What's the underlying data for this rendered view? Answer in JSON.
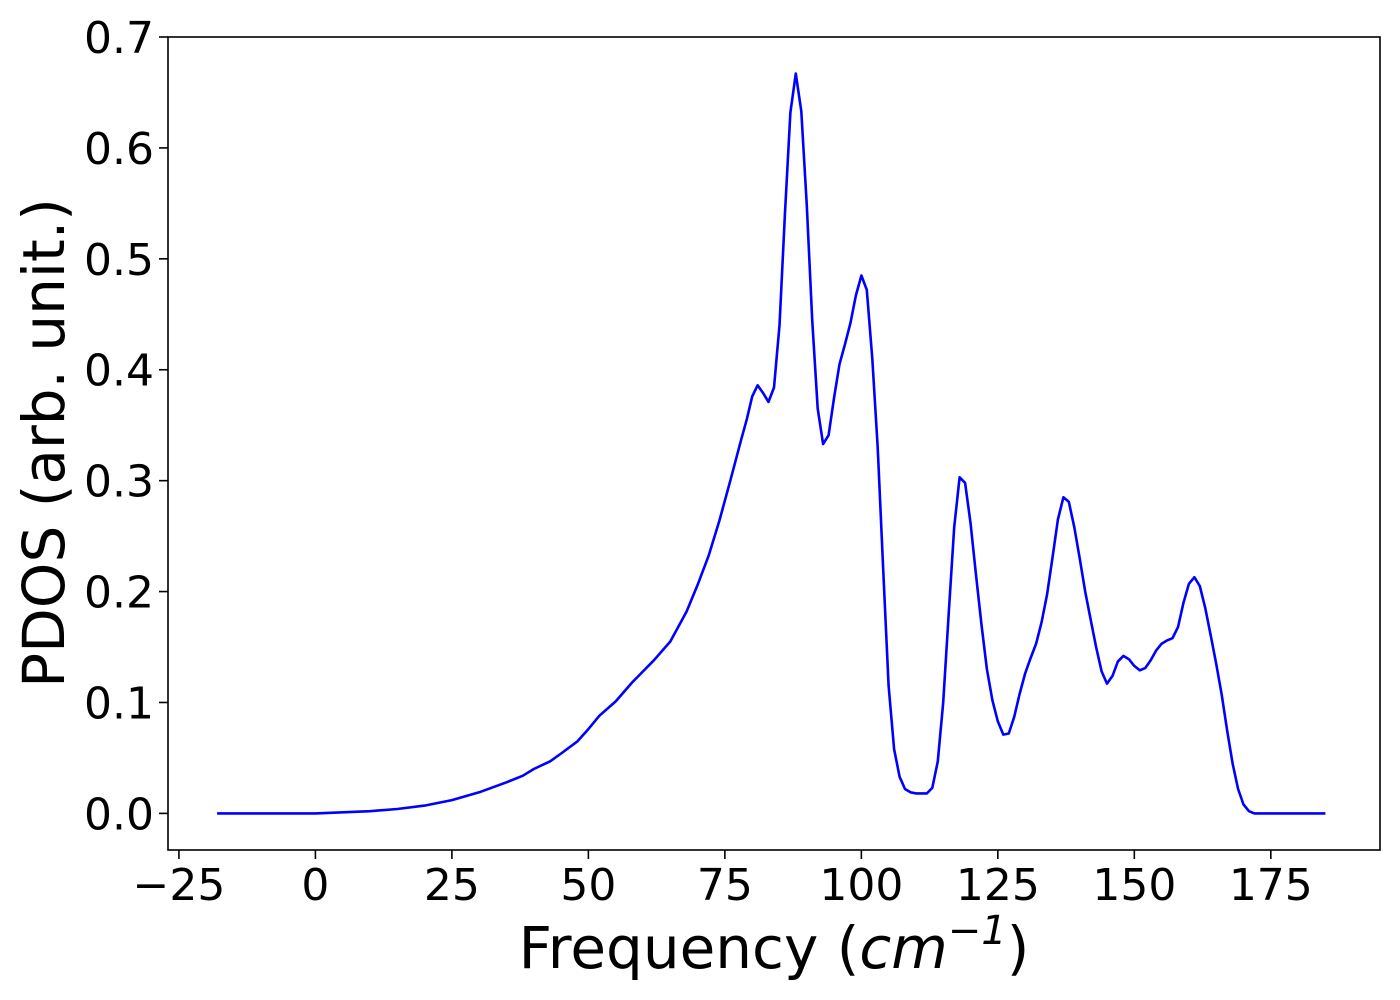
{
  "chart_data": {
    "type": "line",
    "title": "",
    "xlabel": "Frequency (",
    "xlabel_unit_base": "cm",
    "xlabel_unit_exp": "−1",
    "xlabel_close": ")",
    "ylabel": "PDOS (arb. unit.)",
    "xlim": [
      -27,
      195
    ],
    "ylim": [
      -0.033,
      0.7
    ],
    "xticks": [
      -25,
      0,
      25,
      50,
      75,
      100,
      125,
      150,
      175
    ],
    "xtick_labels": [
      "−25",
      "0",
      "25",
      "50",
      "75",
      "100",
      "125",
      "150",
      "175"
    ],
    "yticks": [
      0.0,
      0.1,
      0.2,
      0.3,
      0.4,
      0.5,
      0.6,
      0.7
    ],
    "ytick_labels": [
      "0.0",
      "0.1",
      "0.2",
      "0.3",
      "0.4",
      "0.5",
      "0.6",
      "0.7"
    ],
    "grid": false,
    "series": [
      {
        "color": "#0000ff",
        "x": [
          -18,
          -10,
          0,
          5,
          10,
          15,
          20,
          25,
          30,
          35,
          38,
          40,
          43,
          45,
          48,
          50,
          52,
          55,
          58,
          60,
          62,
          65,
          68,
          70,
          72,
          74,
          76,
          78,
          79,
          80,
          81,
          82,
          83,
          84,
          85,
          86,
          87,
          88,
          89,
          90,
          91,
          92,
          93,
          94,
          95,
          96,
          97,
          98,
          99,
          100,
          101,
          102,
          103,
          104,
          105,
          106,
          107,
          108,
          109,
          110,
          112,
          113,
          114,
          115,
          116,
          117,
          118,
          119,
          120,
          121,
          122,
          123,
          124,
          125,
          126,
          127,
          128,
          129,
          130,
          131,
          132,
          133,
          134,
          135,
          136,
          137,
          138,
          139,
          140,
          141,
          142,
          143,
          144,
          145,
          146,
          147,
          148,
          149,
          150,
          151,
          152,
          153,
          154,
          155,
          156,
          157,
          158,
          159,
          160,
          161,
          162,
          163,
          164,
          165,
          166,
          167,
          168,
          169,
          170,
          171,
          172,
          173,
          175,
          185
        ],
        "y": [
          0.0,
          0.0,
          0.0,
          0.001,
          0.002,
          0.004,
          0.007,
          0.012,
          0.019,
          0.028,
          0.034,
          0.04,
          0.047,
          0.054,
          0.065,
          0.076,
          0.088,
          0.101,
          0.118,
          0.128,
          0.138,
          0.155,
          0.182,
          0.206,
          0.232,
          0.264,
          0.3,
          0.337,
          0.355,
          0.376,
          0.386,
          0.379,
          0.371,
          0.384,
          0.44,
          0.54,
          0.632,
          0.667,
          0.633,
          0.548,
          0.445,
          0.365,
          0.333,
          0.341,
          0.375,
          0.405,
          0.423,
          0.442,
          0.467,
          0.485,
          0.472,
          0.41,
          0.33,
          0.22,
          0.115,
          0.058,
          0.033,
          0.022,
          0.019,
          0.018,
          0.018,
          0.023,
          0.047,
          0.1,
          0.18,
          0.258,
          0.303,
          0.298,
          0.262,
          0.215,
          0.17,
          0.13,
          0.102,
          0.083,
          0.071,
          0.072,
          0.087,
          0.108,
          0.126,
          0.14,
          0.153,
          0.172,
          0.197,
          0.23,
          0.265,
          0.285,
          0.281,
          0.258,
          0.23,
          0.2,
          0.175,
          0.15,
          0.128,
          0.117,
          0.124,
          0.137,
          0.142,
          0.139,
          0.133,
          0.129,
          0.131,
          0.138,
          0.147,
          0.153,
          0.156,
          0.158,
          0.168,
          0.19,
          0.207,
          0.213,
          0.205,
          0.185,
          0.16,
          0.135,
          0.107,
          0.075,
          0.045,
          0.022,
          0.008,
          0.002,
          0.0,
          0.0,
          0.0,
          0.0
        ]
      }
    ]
  }
}
